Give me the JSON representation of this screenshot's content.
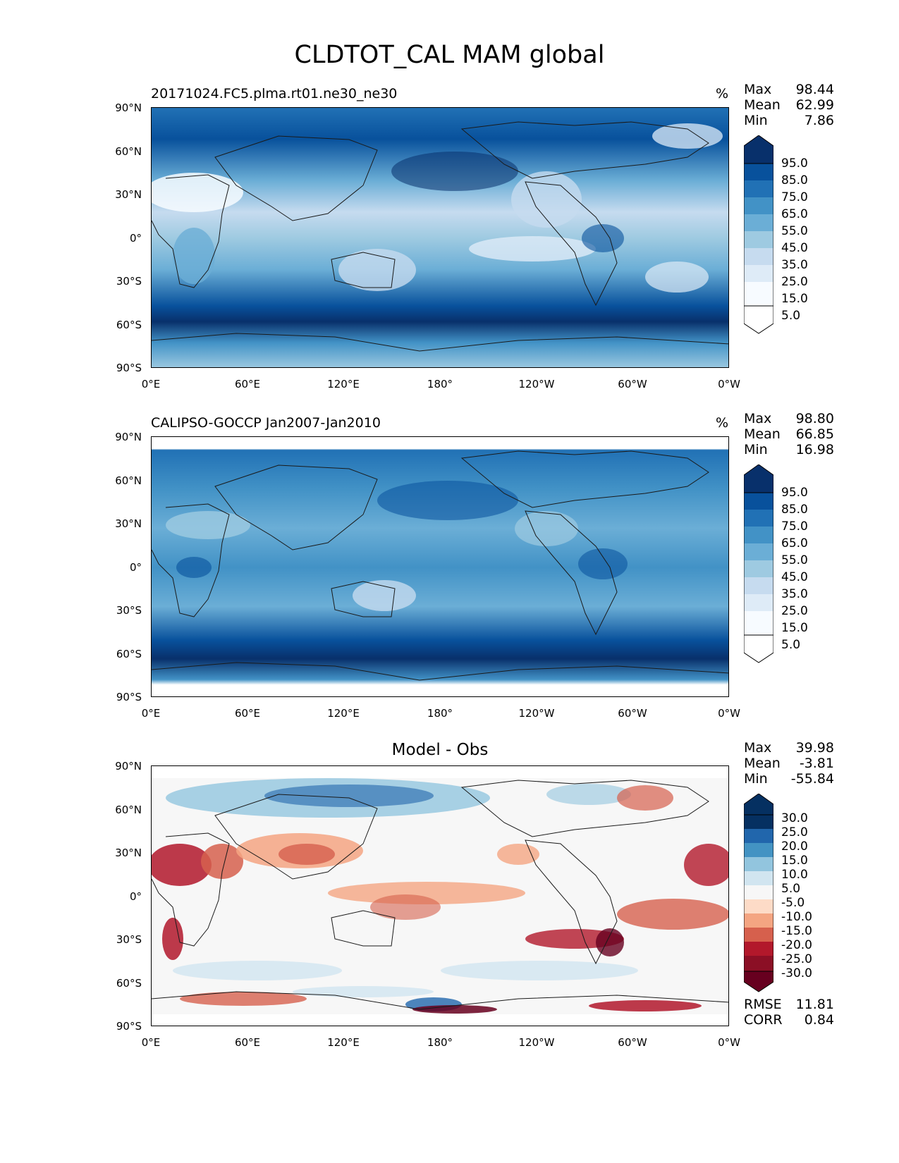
{
  "figure_title": "CLDTOT_CAL MAM global",
  "lat_labels": [
    "90°N",
    "60°N",
    "30°N",
    "0°",
    "30°S",
    "60°S",
    "90°S"
  ],
  "lon_labels": [
    "0°E",
    "60°E",
    "120°E",
    "180°",
    "120°W",
    "60°W",
    "0°W"
  ],
  "panels": [
    {
      "title": "20171024.FC5.plma.rt01.ne30_ne30",
      "units": "%",
      "stats": {
        "max_label": "Max",
        "max": "98.44",
        "mean_label": "Mean",
        "mean": "62.99",
        "min_label": "Min",
        "min": "7.86"
      },
      "colorbar_labels": [
        "95.0",
        "85.0",
        "75.0",
        "65.0",
        "55.0",
        "45.0",
        "35.0",
        "25.0",
        "15.0",
        "5.0"
      ],
      "colors": [
        "#08306b",
        "#08519c",
        "#2171b5",
        "#4292c6",
        "#6baed6",
        "#9ecae1",
        "#c6dbef",
        "#deebf7",
        "#f7fbff"
      ]
    },
    {
      "title": "CALIPSO-GOCCP Jan2007-Jan2010",
      "units": "%",
      "stats": {
        "max_label": "Max",
        "max": "98.80",
        "mean_label": "Mean",
        "mean": "66.85",
        "min_label": "Min",
        "min": "16.98"
      },
      "colorbar_labels": [
        "95.0",
        "85.0",
        "75.0",
        "65.0",
        "55.0",
        "45.0",
        "35.0",
        "25.0",
        "15.0",
        "5.0"
      ],
      "colors": [
        "#08306b",
        "#08519c",
        "#2171b5",
        "#4292c6",
        "#6baed6",
        "#9ecae1",
        "#c6dbef",
        "#deebf7",
        "#f7fbff"
      ]
    },
    {
      "title": "Model - Obs",
      "stats": {
        "max_label": "Max",
        "max": "39.98",
        "mean_label": "Mean",
        "mean": "-3.81",
        "min_label": "Min",
        "min": "-55.84"
      },
      "colorbar_labels": [
        "30.0",
        "25.0",
        "20.0",
        "15.0",
        "10.0",
        "5.0",
        "-5.0",
        "-10.0",
        "-15.0",
        "-20.0",
        "-25.0",
        "-30.0"
      ],
      "metrics": {
        "rmse_label": "RMSE",
        "rmse": "11.81",
        "corr_label": "CORR",
        "corr": "0.84"
      },
      "colors": [
        "#053061",
        "#2166ac",
        "#4393c3",
        "#92c5de",
        "#d1e5f0",
        "#f7f7f7",
        "#fddbc7",
        "#f4a582",
        "#d6604d",
        "#b2182b",
        "#67001f"
      ]
    }
  ]
}
